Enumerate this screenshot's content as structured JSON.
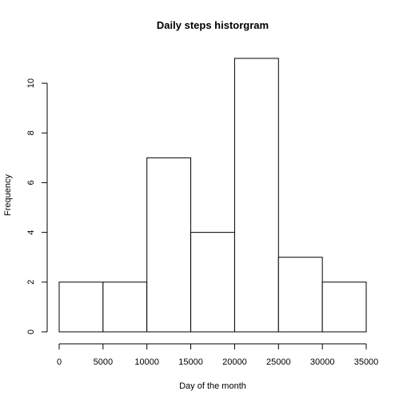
{
  "chart_data": {
    "type": "bar",
    "title": "Daily steps historgram",
    "xlabel": "Day of the month",
    "ylabel": "Frequency",
    "bins": [
      {
        "from": 0,
        "to": 5000,
        "count": 2
      },
      {
        "from": 5000,
        "to": 10000,
        "count": 2
      },
      {
        "from": 10000,
        "to": 15000,
        "count": 7
      },
      {
        "from": 15000,
        "to": 20000,
        "count": 4
      },
      {
        "from": 20000,
        "to": 25000,
        "count": 11
      },
      {
        "from": 25000,
        "to": 30000,
        "count": 3
      },
      {
        "from": 30000,
        "to": 35000,
        "count": 2
      }
    ],
    "xlim": [
      0,
      35000
    ],
    "ylim": [
      0,
      11
    ],
    "x_ticks": [
      0,
      5000,
      10000,
      15000,
      20000,
      25000,
      30000,
      35000
    ],
    "y_ticks": [
      0,
      2,
      4,
      6,
      8,
      10
    ],
    "grid": false,
    "legend": "none"
  }
}
